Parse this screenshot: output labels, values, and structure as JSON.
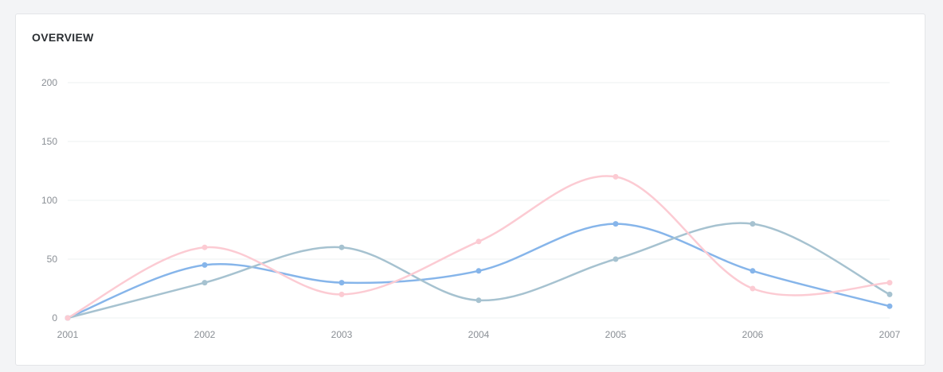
{
  "card": {
    "title": "OVERVIEW"
  },
  "chart_data": {
    "type": "line",
    "title": "",
    "xlabel": "",
    "ylabel": "",
    "x": [
      "2001",
      "2002",
      "2003",
      "2004",
      "2005",
      "2006",
      "2007"
    ],
    "ylim": [
      0,
      200
    ],
    "yticks": [
      0,
      50,
      100,
      150,
      200
    ],
    "grid": true,
    "smooth": true,
    "series": [
      {
        "color": "#86b5ea",
        "values": [
          0,
          45,
          30,
          40,
          80,
          40,
          10
        ]
      },
      {
        "color": "#a6c2d0",
        "values": [
          0,
          30,
          60,
          15,
          50,
          80,
          20
        ]
      },
      {
        "color": "#fccbd3",
        "values": [
          0,
          60,
          20,
          65,
          120,
          25,
          30
        ]
      }
    ]
  }
}
